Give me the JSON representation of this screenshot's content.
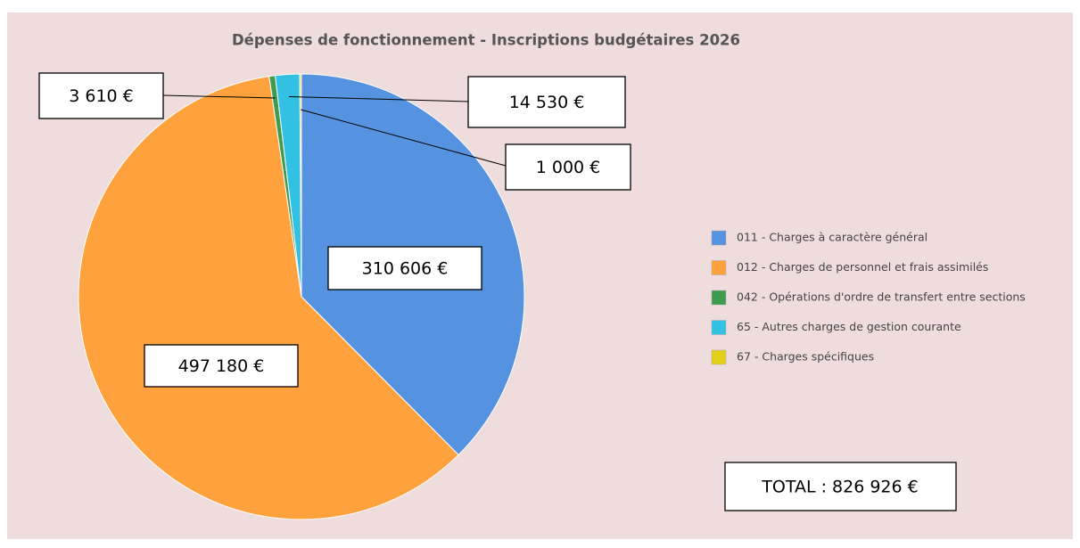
{
  "chart_data": {
    "type": "pie",
    "title": "Dépenses de fonctionnement - Inscriptions budgétaires 2026",
    "categories": [
      "011 - Charges à caractère général",
      "012 - Charges de personnel et frais assimilés",
      "042 - Opérations d'ordre de transfert entre sections",
      "65 - Autres charges de gestion courante",
      "67 - Charges spécifiques"
    ],
    "values": [
      310606,
      497180,
      3610,
      14530,
      1000
    ],
    "value_labels": [
      "310 606 €",
      "497 180 €",
      "3 610 €",
      "14 530 €",
      "1 000 €"
    ],
    "colors": [
      "#5592e0",
      "#ffa23e",
      "#3f9b4d",
      "#33c1e3",
      "#e3cf1a"
    ],
    "annotation": "TOTAL : 826 926 €",
    "legend": "right"
  }
}
